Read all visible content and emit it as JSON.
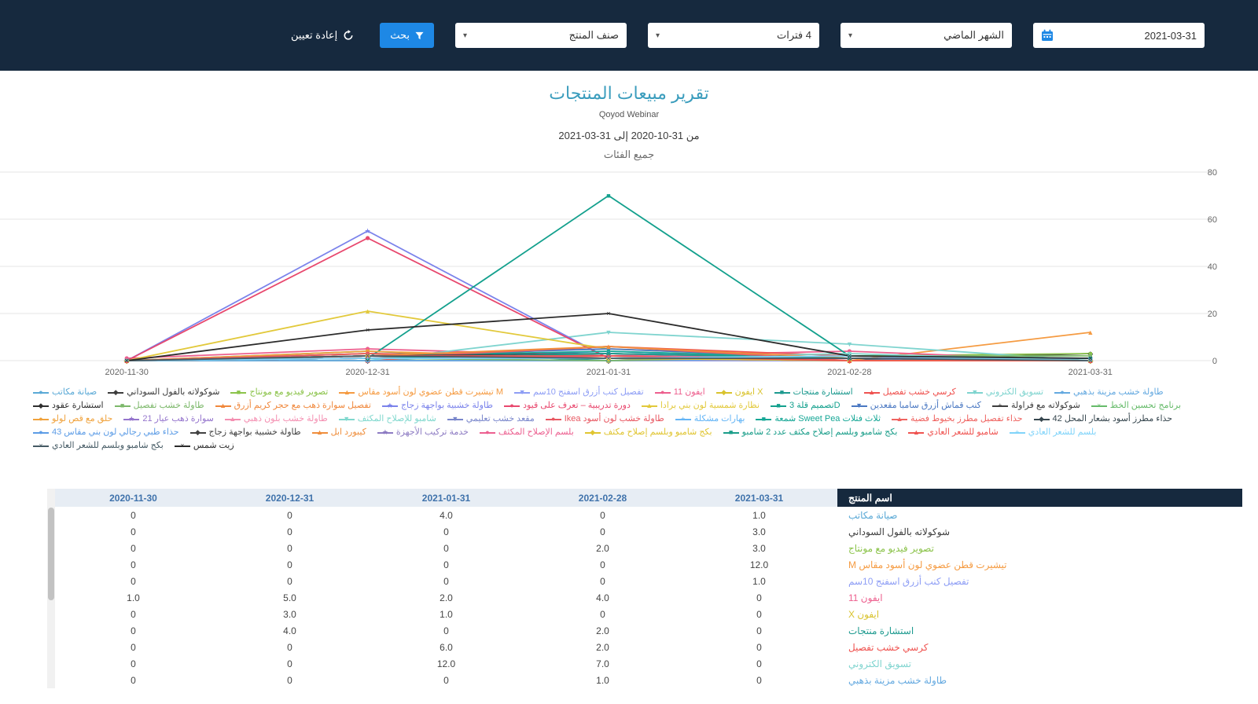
{
  "topbar": {
    "date_value": "2021-03-31",
    "dropdowns": [
      {
        "label": "الشهر الماضي"
      },
      {
        "label": "4 فترات"
      },
      {
        "label": "صنف المنتج"
      }
    ],
    "search_label": "بحث",
    "reset_label": "إعادة تعيين",
    "accent_color": "#1e88e5",
    "bar_color": "#16293e"
  },
  "report": {
    "title": "تقرير مبيعات المنتجات",
    "subtitle": "Qoyod Webinar",
    "date_range": "من 31-10-2020 إلى 31-03-2021",
    "category": "جميع الفئات"
  },
  "chart_data": {
    "type": "line",
    "title": "تقرير مبيعات المنتجات",
    "categories": [
      "2020-11-30",
      "2020-12-31",
      "2021-01-31",
      "2021-02-28",
      "2021-03-31"
    ],
    "ylim": [
      0,
      80
    ],
    "yticks": [
      0,
      20,
      40,
      60,
      80
    ],
    "grid": true,
    "legend_position": "bottom",
    "series": [
      {
        "name": "صيانة مكاتب",
        "color": "#5aa9d6",
        "marker": "●",
        "values": [
          0,
          0,
          4,
          0,
          1
        ]
      },
      {
        "name": "شوكولاته بالفول السوداني",
        "color": "#3d3d3d",
        "marker": "◆",
        "values": [
          0,
          0,
          0,
          0,
          3
        ]
      },
      {
        "name": "تصوير فيديو مع مونتاج",
        "color": "#8bc34a",
        "marker": "■",
        "values": [
          0,
          0,
          0,
          2,
          3
        ]
      },
      {
        "name": "تيشيرت قطن عضوي لون أسود مقاس M",
        "color": "#f59b42",
        "marker": "▲",
        "values": [
          0,
          0,
          0,
          0,
          12
        ]
      },
      {
        "name": "تفصيل كنب أزرق اسفنج 10سم",
        "color": "#8e9ef5",
        "marker": "▼",
        "values": [
          0,
          0,
          0,
          0,
          1
        ]
      },
      {
        "name": "ايفون 11",
        "color": "#ed5f8e",
        "marker": "●",
        "values": [
          1,
          5,
          2,
          4,
          0
        ]
      },
      {
        "name": "ايفون X",
        "color": "#d9c32e",
        "marker": "◆",
        "values": [
          0,
          3,
          1,
          0,
          0
        ]
      },
      {
        "name": "استشارة منتجات",
        "color": "#1d9a8f",
        "marker": "■",
        "values": [
          0,
          4,
          0,
          2,
          0
        ]
      },
      {
        "name": "كرسي خشب تفصيل",
        "color": "#ef5350",
        "marker": "▲",
        "values": [
          0,
          0,
          6,
          2,
          0
        ]
      },
      {
        "name": "تسويق الكتروني",
        "color": "#7fd4cf",
        "marker": "▼",
        "values": [
          0,
          0,
          12,
          7,
          0
        ]
      },
      {
        "name": "طاولة خشب مزينة بذهبي",
        "color": "#64a9e0",
        "marker": "●",
        "values": [
          0,
          0,
          0,
          1,
          0
        ]
      },
      {
        "name": "استشارة عقود",
        "color": "#2f2f2f",
        "marker": "◆",
        "values": [
          0,
          2,
          1,
          1,
          0
        ]
      },
      {
        "name": "طاولة خشب تفصيل",
        "color": "#7cb86a",
        "marker": "■",
        "values": [
          0,
          1,
          0,
          2,
          2
        ]
      },
      {
        "name": "تفصيل سوارة ذهب مع حجر كريم أزرق",
        "color": "#f0883c",
        "marker": "▲",
        "values": [
          0,
          3,
          2,
          0,
          0
        ]
      },
      {
        "name": "طاولة خشبية بواجهة زجاج",
        "color": "#7b83eb",
        "marker": "★",
        "values": [
          0,
          55,
          1,
          1,
          1
        ]
      },
      {
        "name": "دورة تدريبية – تعرف على قيود",
        "color": "#e8486e",
        "marker": "●",
        "values": [
          0,
          52,
          1,
          0,
          0
        ]
      },
      {
        "name": "نظارة شمسية لون بني برادا",
        "color": "#e2c93b",
        "marker": "▲",
        "values": [
          0,
          21,
          5,
          1,
          0
        ]
      },
      {
        "name": "تصميم قلة 3D",
        "color": "#13a08d",
        "marker": "■",
        "values": [
          0,
          1,
          70,
          2,
          1
        ]
      },
      {
        "name": "كنب قماش أزرق سامبا مقعدين",
        "color": "#4a78c2",
        "marker": "▼",
        "values": [
          0,
          2,
          5,
          1,
          0
        ]
      },
      {
        "name": "شوكولاته مع فراولة",
        "color": "#3e3e3e",
        "marker": "+",
        "values": [
          0,
          2,
          3,
          1,
          0
        ]
      },
      {
        "name": "برنامج تحسين الخط",
        "color": "#66bb6a",
        "marker": "×",
        "values": [
          0,
          1,
          2,
          0,
          0
        ]
      },
      {
        "name": "حلق مع قص لولو",
        "color": "#f0a23c",
        "marker": "●",
        "values": [
          0,
          4,
          1,
          0,
          0
        ]
      },
      {
        "name": "سوارة ذهب عيار 21",
        "color": "#9575cd",
        "marker": "★",
        "values": [
          0,
          2,
          2,
          0,
          0
        ]
      },
      {
        "name": "طاولة خشب بلون ذهبي",
        "color": "#f48fb1",
        "marker": "▲",
        "values": [
          0,
          1,
          3,
          0,
          0
        ]
      },
      {
        "name": "شامبو للإصلاح المكثف",
        "color": "#80d8ce",
        "marker": "▼",
        "values": [
          0,
          2,
          1,
          3,
          0
        ]
      },
      {
        "name": "مقعد خشب تعليمي",
        "color": "#7986cb",
        "marker": "▼",
        "values": [
          0,
          1,
          2,
          1,
          0
        ]
      },
      {
        "name": "Ikea طاولة خشب لون أسود",
        "color": "#e85862",
        "marker": "●",
        "values": [
          0,
          3,
          1,
          0,
          0
        ]
      },
      {
        "name": "بهارات مشكلة",
        "color": "#64b5f6",
        "marker": "+",
        "values": [
          0,
          1,
          1,
          0,
          0
        ]
      },
      {
        "name": "شمعة Sweet Pea ثلاث فتلات",
        "color": "#16a796",
        "marker": "■",
        "values": [
          0,
          2,
          4,
          1,
          0
        ]
      },
      {
        "name": "حذاء تفصيل مطرز بخيوط فضية",
        "color": "#ef6360",
        "marker": "▲",
        "values": [
          0,
          1,
          6,
          0,
          0
        ]
      },
      {
        "name": "حذاء مطرز أسود بشعار المحل 42",
        "color": "#37474f",
        "marker": "◆",
        "values": [
          0,
          2,
          3,
          1,
          0
        ]
      },
      {
        "name": "حذاء طبي رجالي لون بني مقاس 43",
        "color": "#5c9ce6",
        "marker": "●",
        "values": [
          0,
          1,
          3,
          1,
          0
        ]
      },
      {
        "name": "طاولة خشبية بواجهة زجاج",
        "color": "#424242",
        "marker": "◆",
        "values": [
          0,
          1,
          2,
          1,
          0
        ]
      },
      {
        "name": "كيبورد ابل",
        "color": "#ef8e3c",
        "marker": "▲",
        "values": [
          0,
          2,
          6,
          1,
          0
        ]
      },
      {
        "name": "خدمة تركيب الأجهزة",
        "color": "#8e7cc3",
        "marker": "★",
        "values": [
          0,
          2,
          1,
          1,
          0
        ]
      },
      {
        "name": "بلسم الإصلاح المكثف",
        "color": "#ec6090",
        "marker": "●",
        "values": [
          0,
          1,
          2,
          1,
          0
        ]
      },
      {
        "name": "بكج شامبو وبلسم إصلاح مكثف",
        "color": "#e0c531",
        "marker": "◆",
        "values": [
          0,
          2,
          1,
          0,
          0
        ]
      },
      {
        "name": "بكج شامبو وبلسم إصلاح مكثف عدد 2 شامبو",
        "color": "#1b9e8a",
        "marker": "■",
        "values": [
          0,
          1,
          3,
          1,
          0
        ]
      },
      {
        "name": "شامبو للشعر العادي",
        "color": "#ef5350",
        "marker": "▲",
        "values": [
          0,
          2,
          2,
          0,
          0
        ]
      },
      {
        "name": "بلسم للشعر العادي",
        "color": "#81d4fa",
        "marker": "+",
        "values": [
          0,
          1,
          1,
          2,
          0
        ]
      },
      {
        "name": "بكج شامبو وبلسم للشعر العادي",
        "color": "#455a64",
        "marker": "×",
        "values": [
          0,
          2,
          1,
          1,
          0
        ]
      },
      {
        "name": "زيت شمس",
        "color": "#2b2b2b",
        "marker": "×",
        "values": [
          0,
          13,
          20,
          2,
          1
        ]
      }
    ]
  },
  "table": {
    "name_header": "اسم المنتج",
    "date_headers": [
      "2020-11-30",
      "2020-12-31",
      "2021-01-31",
      "2021-02-28",
      "2021-03-31"
    ],
    "rows": [
      {
        "name": "صيانة مكاتب",
        "color": "#5aa9d6",
        "values": [
          "0",
          "0",
          "4.0",
          "0",
          "1.0"
        ]
      },
      {
        "name": "شوكولاته بالفول السوداني",
        "color": "#3d3d3d",
        "values": [
          "0",
          "0",
          "0",
          "0",
          "3.0"
        ]
      },
      {
        "name": "تصوير فيديو مع مونتاج",
        "color": "#8bc34a",
        "values": [
          "0",
          "0",
          "0",
          "2.0",
          "3.0"
        ]
      },
      {
        "name": "تيشيرت قطن عضوي لون أسود مقاس M",
        "color": "#f59b42",
        "values": [
          "0",
          "0",
          "0",
          "0",
          "12.0"
        ]
      },
      {
        "name": "تفصيل كنب أزرق اسفنج 10سم",
        "color": "#8e9ef5",
        "values": [
          "0",
          "0",
          "0",
          "0",
          "1.0"
        ]
      },
      {
        "name": "ايفون 11",
        "color": "#ed5f8e",
        "values": [
          "1.0",
          "5.0",
          "2.0",
          "4.0",
          "0"
        ]
      },
      {
        "name": "ايفون X",
        "color": "#d9c32e",
        "values": [
          "0",
          "3.0",
          "1.0",
          "0",
          "0"
        ]
      },
      {
        "name": "استشارة منتجات",
        "color": "#1d9a8f",
        "values": [
          "0",
          "4.0",
          "0",
          "2.0",
          "0"
        ]
      },
      {
        "name": "كرسي خشب تفصيل",
        "color": "#ef5350",
        "values": [
          "0",
          "0",
          "6.0",
          "2.0",
          "0"
        ]
      },
      {
        "name": "تسويق الكتروني",
        "color": "#7fd4cf",
        "values": [
          "0",
          "0",
          "12.0",
          "7.0",
          "0"
        ]
      },
      {
        "name": "طاولة خشب مزينة بذهبي",
        "color": "#64a9e0",
        "values": [
          "0",
          "0",
          "0",
          "1.0",
          "0"
        ]
      }
    ]
  }
}
